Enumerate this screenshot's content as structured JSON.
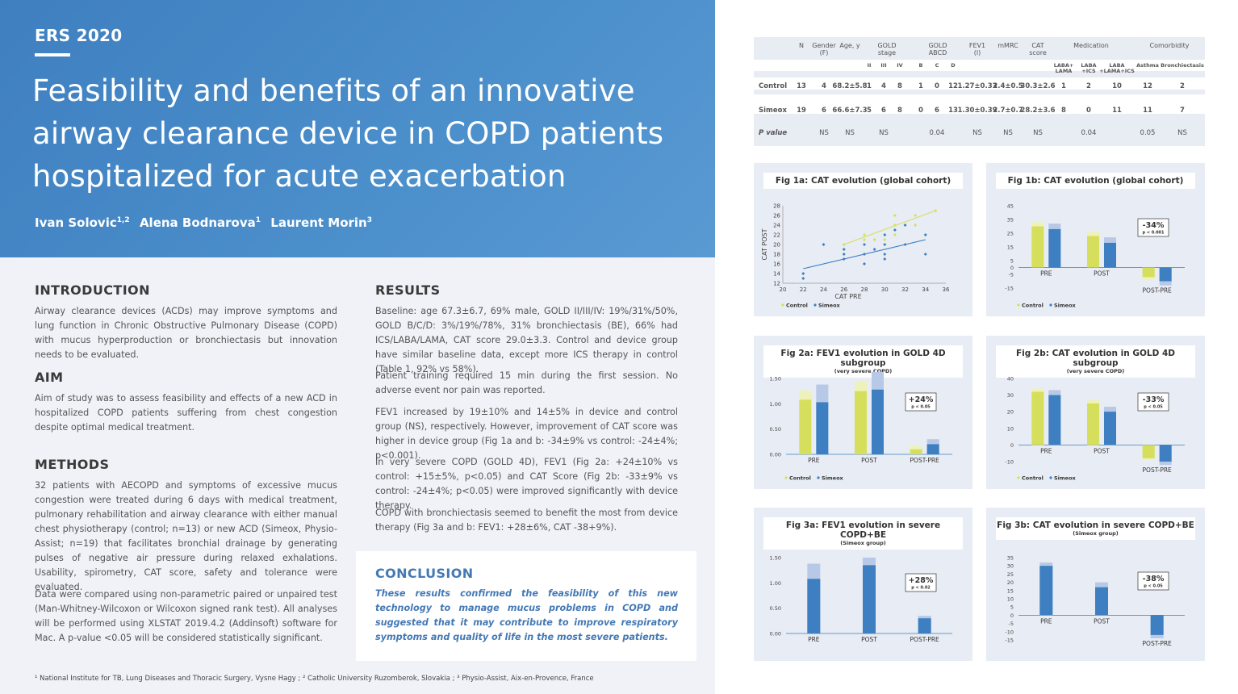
{
  "conference": "ERS 2020",
  "title": "Feasibility and benefits of an innovative airway clearance device in COPD patients hospitalized for acute exacerbation",
  "authors": [
    {
      "name": "Ivan Solovic",
      "sup": "1,2"
    },
    {
      "name": "Alena Bodnarova",
      "sup": "1"
    },
    {
      "name": "Laurent Morin",
      "sup": "3"
    }
  ],
  "introduction": {
    "heading": "INTRODUCTION",
    "text": "Airway clearance devices (ACDs) may improve symptoms and lung function in Chronic Obstructive Pulmonary Disease (COPD) with mucus hyperproduction or bronchiectasis but innovation needs to be evaluated."
  },
  "aim": {
    "heading": "AIM",
    "text": "Aim of study was to assess feasibility and effects of a new ACD in hospitalized COPD patients suffering from chest congestion despite optimal medical treatment."
  },
  "methods": {
    "heading": "METHODS",
    "p1": "32 patients with AECOPD and symptoms of excessive mucus congestion were treated during 6 days with medical treatment, pulmonary rehabilitation and airway clearance with either manual chest physiotherapy (control; n=13) or new ACD (Simeox, Physio-Assist; n=19) that facilitates bronchial drainage by generating pulses of negative air pressure during relaxed exhalations. Usability, spirometry, CAT score, safety and tolerance were evaluated.",
    "p2": "Data were compared using non-parametric paired or unpaired test (Man-Whitney-Wilcoxon or Wilcoxon signed rank test). All analyses will be performed using XLSTAT 2019.4.2 (Addinsoft) software for Mac. A p-value <0.05 will be considered statistically significant."
  },
  "results": {
    "heading": "RESULTS",
    "p1": "Baseline: age 67.3±6.7, 69% male, GOLD II/III/IV: 19%/31%/50%, GOLD B/C/D: 3%/19%/78%, 31% bronchiectasis (BE), 66% had ICS/LABA/LAMA, CAT score 29.0±3.3. Control and device group have similar baseline data, except more ICS therapy in control (Table 1, 92% vs 58%).",
    "p2": "Patient training required 15 min during the first session. No adverse event nor pain was reported.",
    "p3": "FEV1 increased by 19±10% and 14±5% in device and control group (NS), respectively. However, improvement of CAT score was higher in device group (Fig 1a and b: -34±9% vs control: -24±4%; p<0.001).",
    "p4": "In very severe COPD (GOLD 4D), FEV1 (Fig 2a: +24±10% vs control: +15±5%, p<0.05) and CAT Score (Fig 2b: -33±9% vs control: -24±4%; p<0.05) were improved significantly with device therapy.",
    "p5": "COPD with bronchiectasis seemed to benefit the most from device therapy (Fig 3a and b: FEV1: +28±6%, CAT -38+9%)."
  },
  "conclusion": {
    "heading": "CONCLUSION",
    "text": "These results confirmed the feasibility of this new technology to manage mucus problems in COPD and suggested that it may contribute to improve respiratory symptoms and quality of life in the most severe patients."
  },
  "footnote": "¹ National Institute for TB, Lung Diseases and Thoracic Surgery, Vysne Hagy ; ² Catholic University Ruzomberok, Slovakia ; ³ Physio-Assist, Aix-en-Provence, France",
  "table": {
    "headers": {
      "n": "N",
      "gender": "Gender\n(F)",
      "age": "Age, y",
      "gold_stage": "GOLD\nstage",
      "gold_abcd": "GOLD\nABCD",
      "fev1": "FEV1\n(l)",
      "mmrc": "mMRC",
      "cat": "CAT\nscore",
      "medication": "Medication",
      "comorbidity": "Comorbidity"
    },
    "subheaders": [
      "II",
      "III",
      "IV",
      "B",
      "C",
      "D",
      "LABA+\nLAMA",
      "LABA\n+ICS",
      "LABA\n+LAMA+ICS",
      "Asthma",
      "Bronchiectasis"
    ],
    "rows": [
      {
        "label": "Control",
        "values": [
          "13",
          "4",
          "68.2±5.8",
          "1",
          "4",
          "8",
          "1",
          "0",
          "12",
          "1.27±0.33",
          "2.4±0.5",
          "30.3±2.6",
          "1",
          "2",
          "10",
          "12",
          "2"
        ]
      },
      {
        "label": "Simeox",
        "values": [
          "19",
          "6",
          "66.6±7.3",
          "5",
          "6",
          "8",
          "0",
          "6",
          "13",
          "1.30±0.39",
          "2.7±0.7",
          "28.2±3.6",
          "8",
          "0",
          "11",
          "11",
          "7"
        ]
      },
      {
        "label": "P value",
        "values": [
          "",
          "NS",
          "NS",
          "",
          "NS",
          "",
          "",
          "0.04",
          "",
          "NS",
          "NS",
          "NS",
          "",
          "0.04",
          "",
          "0.05",
          "NS"
        ]
      }
    ]
  },
  "colors": {
    "control": "#d6df5b",
    "simeox": "#3d7fc1",
    "post_control": "#eef2b8",
    "post_simeox": "#b7c9e6",
    "header": "#4b8fcb"
  },
  "chart_data": [
    {
      "id": "fig1a",
      "type": "scatter",
      "title": "Fig 1a: CAT evolution (global cohort)",
      "xlabel": "CAT PRE",
      "ylabel": "CAT POST",
      "xlim": [
        20,
        36
      ],
      "ylim": [
        12,
        28
      ],
      "xticks": [
        "20",
        "22",
        "24",
        "26",
        "28",
        "30",
        "32",
        "34",
        "36"
      ],
      "yticks": [
        "12",
        "14",
        "16",
        "18",
        "20",
        "22",
        "24",
        "26",
        "28"
      ],
      "series": [
        {
          "name": "Control",
          "points": [
            [
              26,
              19
            ],
            [
              28,
              21
            ],
            [
              28,
              22
            ],
            [
              29,
              21
            ],
            [
              30,
              21
            ],
            [
              31,
              22
            ],
            [
              31,
              24
            ],
            [
              31,
              26
            ],
            [
              32,
              24
            ],
            [
              33,
              24
            ],
            [
              33,
              26
            ],
            [
              35,
              27
            ],
            [
              26,
              20
            ]
          ],
          "trend": [
            [
              26,
              20
            ],
            [
              35,
              27
            ]
          ]
        },
        {
          "name": "Simeox",
          "points": [
            [
              22,
              13
            ],
            [
              22,
              14
            ],
            [
              24,
              20
            ],
            [
              26,
              17
            ],
            [
              26,
              19
            ],
            [
              28,
              16
            ],
            [
              28,
              18
            ],
            [
              29,
              19
            ],
            [
              30,
              17
            ],
            [
              30,
              18
            ],
            [
              30,
              22
            ],
            [
              32,
              20
            ],
            [
              32,
              24
            ],
            [
              34,
              18
            ],
            [
              34,
              22
            ],
            [
              28,
              20
            ],
            [
              31,
              23
            ],
            [
              26,
              18
            ],
            [
              30,
              20
            ]
          ],
          "trend": [
            [
              22,
              15
            ],
            [
              34,
              21
            ]
          ]
        }
      ],
      "legend": [
        "Control",
        "Simeox"
      ]
    },
    {
      "id": "fig1b",
      "type": "bar",
      "title": "Fig 1b: CAT evolution (global cohort)",
      "categories": [
        "PRE",
        "POST",
        "POST-PRE"
      ],
      "yticks": [
        "45",
        "35",
        "25",
        "15",
        "5",
        "0",
        "-5",
        "-15"
      ],
      "ylim": [
        -15,
        45
      ],
      "series": [
        {
          "name": "Control",
          "values": [
            30,
            23,
            -7
          ],
          "sd": [
            3,
            3,
            2
          ]
        },
        {
          "name": "Simeox",
          "values": [
            28,
            18,
            -10
          ],
          "sd": [
            4,
            4,
            3
          ]
        }
      ],
      "annotation": {
        "value": "-34%",
        "p": "p < 0.001"
      },
      "legend": [
        "Control",
        "Simeox"
      ]
    },
    {
      "id": "fig2a",
      "type": "bar",
      "title": "Fig 2a: FEV1 evolution in GOLD 4D subgroup",
      "subtitle": "(very severe COPD)",
      "categories": [
        "PRE",
        "POST",
        "POST-PRE"
      ],
      "yticks": [
        "1.50",
        "1.00",
        "0.50",
        "0.00"
      ],
      "ylim": [
        0,
        1.5
      ],
      "series": [
        {
          "name": "Control",
          "values": [
            1.08,
            1.25,
            0.1
          ],
          "sd": [
            0.18,
            0.2,
            0.07
          ]
        },
        {
          "name": "Simeox",
          "values": [
            1.03,
            1.28,
            0.2
          ],
          "sd": [
            0.35,
            0.35,
            0.1
          ]
        }
      ],
      "annotation": {
        "value": "+24%",
        "p": "p < 0.05"
      },
      "legend": [
        "Control",
        "Simeox"
      ]
    },
    {
      "id": "fig2b",
      "type": "bar",
      "title": "Fig 2b: CAT evolution in GOLD 4D subgroup",
      "subtitle": "(very severe COPD)",
      "categories": [
        "PRE",
        "POST",
        "POST-PRE"
      ],
      "yticks": [
        "40",
        "30",
        "20",
        "10",
        "0",
        "-10"
      ],
      "ylim": [
        -10,
        40
      ],
      "series": [
        {
          "name": "Control",
          "values": [
            32,
            25,
            -8
          ],
          "sd": [
            2,
            2,
            1
          ]
        },
        {
          "name": "Simeox",
          "values": [
            30,
            20,
            -10
          ],
          "sd": [
            3,
            3,
            2
          ]
        }
      ],
      "annotation": {
        "value": "-33%",
        "p": "p < 0.05"
      },
      "legend": [
        "Control",
        "Simeox"
      ]
    },
    {
      "id": "fig3a",
      "type": "bar",
      "title": "Fig 3a: FEV1 evolution in severe COPD+BE",
      "subtitle": "(Simeox group)",
      "categories": [
        "PRE",
        "POST",
        "POST-PRE"
      ],
      "yticks": [
        "1.50",
        "1.00",
        "0.50",
        "0.00"
      ],
      "ylim": [
        0,
        1.5
      ],
      "series": [
        {
          "name": "Simeox",
          "values": [
            1.08,
            1.35,
            0.3
          ],
          "sd": [
            0.3,
            0.15,
            0.05
          ]
        }
      ],
      "annotation": {
        "value": "+28%",
        "p": "p < 0.02"
      }
    },
    {
      "id": "fig3b",
      "type": "bar",
      "title": "Fig 3b: CAT evolution in severe COPD+BE",
      "subtitle": "(Simeox group)",
      "categories": [
        "PRE",
        "POST",
        "POST-PRE"
      ],
      "yticks": [
        "35",
        "30",
        "25",
        "20",
        "15",
        "10",
        "5",
        "0",
        "-5",
        "-10",
        "-15"
      ],
      "ylim": [
        -15,
        35
      ],
      "series": [
        {
          "name": "Simeox",
          "values": [
            30,
            17,
            -12
          ],
          "sd": [
            2,
            3,
            2
          ]
        }
      ],
      "annotation": {
        "value": "-38%",
        "p": "p < 0.05"
      }
    }
  ]
}
